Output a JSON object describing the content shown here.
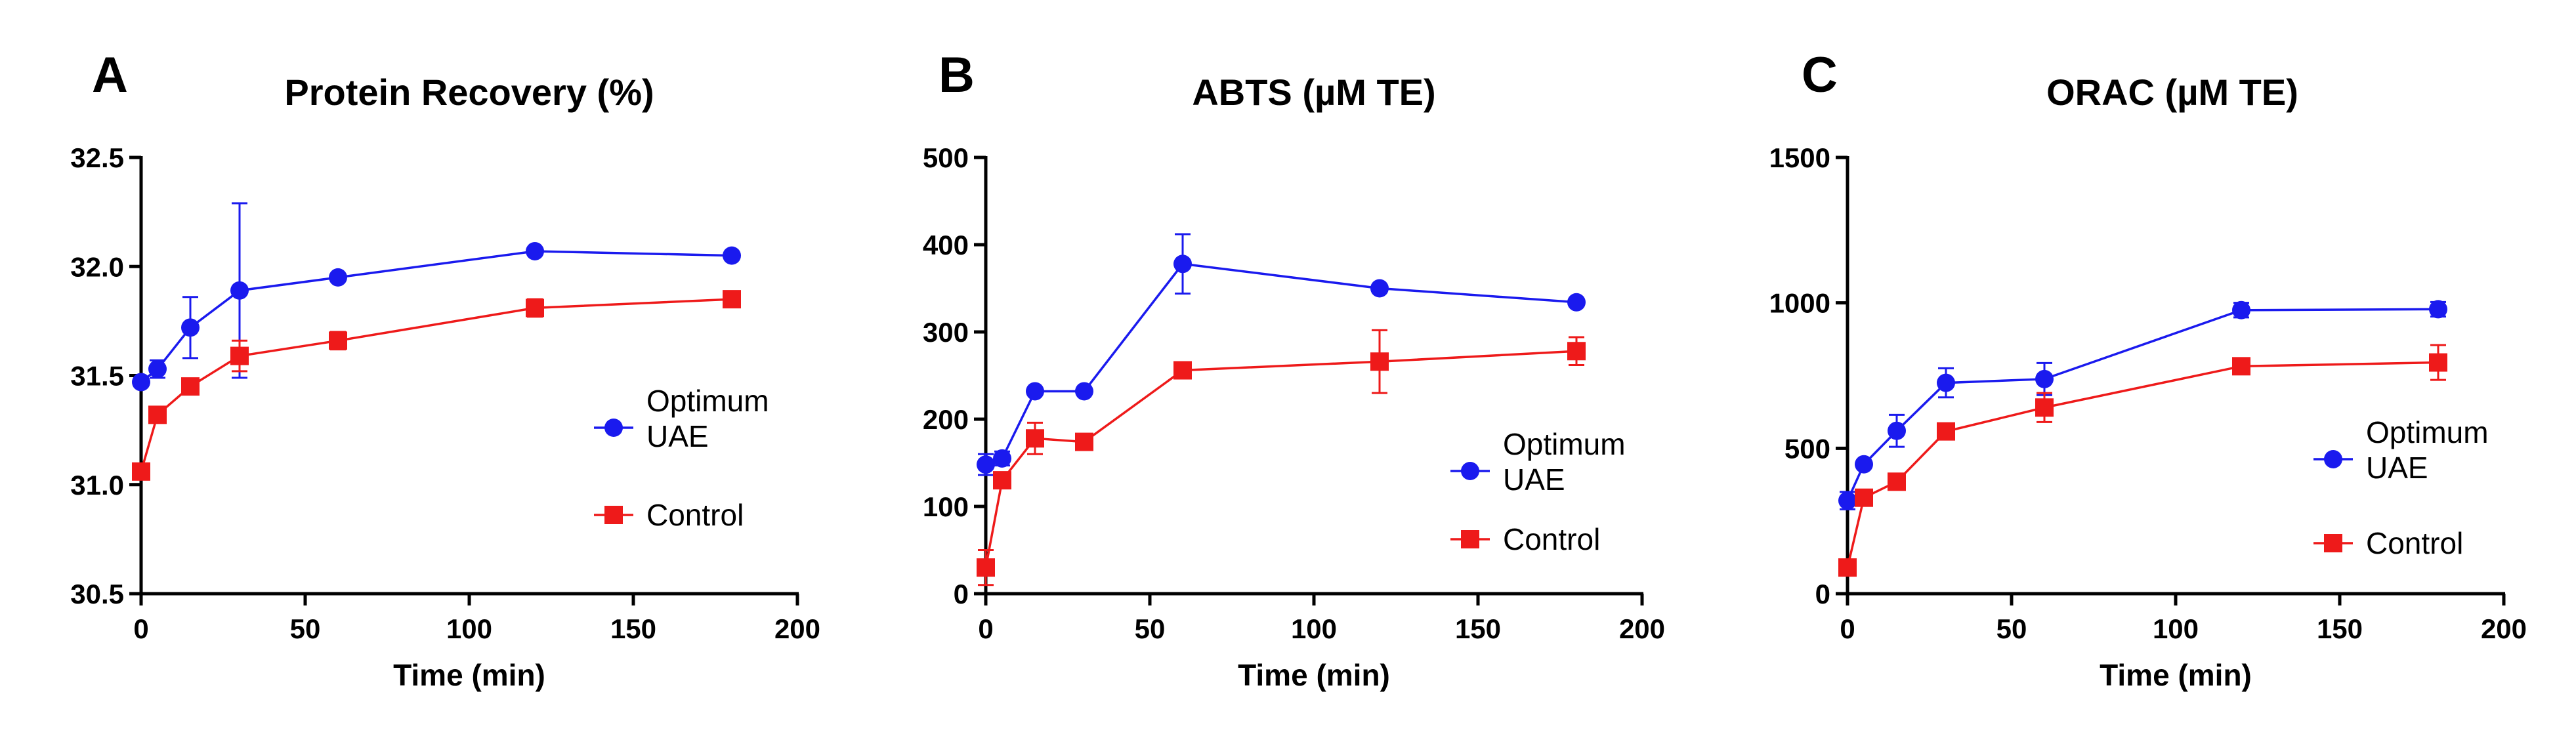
{
  "chart_data": [
    {
      "type": "line",
      "panel": "A",
      "title": "Protein Recovery (%)",
      "xlabel": "Time (min)",
      "ylabel": "",
      "xlim": [
        0,
        200
      ],
      "ylim": [
        30.5,
        32.5
      ],
      "xticks": [
        0,
        50,
        100,
        150,
        200
      ],
      "xtick_labels": [
        "0",
        "50",
        "100",
        "150",
        "200"
      ],
      "yticks": [
        30.5,
        31.0,
        31.5,
        32.0,
        32.5
      ],
      "ytick_labels": [
        "30.5",
        "31.0",
        "31.5",
        "32.0",
        "32.5"
      ],
      "x": [
        0,
        5,
        15,
        30,
        60,
        120,
        180
      ],
      "series": [
        {
          "name": "Optimum UAE",
          "legend_lines": [
            "Optimum",
            "UAE"
          ],
          "color": "#1a1aee",
          "marker": "circle",
          "values": [
            31.47,
            31.53,
            31.72,
            31.89,
            31.95,
            32.07,
            32.05
          ],
          "errors": [
            0.0,
            0.04,
            0.14,
            0.4,
            0.0,
            0.0,
            0.0
          ]
        },
        {
          "name": "Control",
          "legend_lines": [
            "Control"
          ],
          "color": "#ee1a1a",
          "marker": "square",
          "values": [
            31.06,
            31.32,
            31.45,
            31.59,
            31.66,
            31.81,
            31.85
          ],
          "errors": [
            0.0,
            0.0,
            0.0,
            0.07,
            0.04,
            0.04,
            0.0
          ]
        }
      ]
    },
    {
      "type": "line",
      "panel": "B",
      "title": "ABTS (µM TE)",
      "xlabel": "Time (min)",
      "ylabel": "",
      "xlim": [
        0,
        200
      ],
      "ylim": [
        0,
        500
      ],
      "xticks": [
        0,
        50,
        100,
        150,
        200
      ],
      "xtick_labels": [
        "0",
        "50",
        "100",
        "150",
        "200"
      ],
      "yticks": [
        0,
        100,
        200,
        300,
        400,
        500
      ],
      "ytick_labels": [
        "0",
        "100",
        "200",
        "300",
        "400",
        "500"
      ],
      "x": [
        0,
        5,
        15,
        30,
        60,
        120,
        180
      ],
      "series": [
        {
          "name": "Optimum UAE",
          "legend_lines": [
            "Optimum",
            "UAE"
          ],
          "color": "#1a1aee",
          "marker": "circle",
          "values": [
            148,
            155,
            232,
            232,
            378,
            350,
            334
          ],
          "errors": [
            12,
            8,
            0,
            0,
            34,
            0,
            0
          ]
        },
        {
          "name": "Control",
          "legend_lines": [
            "Control"
          ],
          "color": "#ee1a1a",
          "marker": "square",
          "values": [
            30,
            130,
            178,
            174,
            256,
            266,
            278
          ],
          "errors": [
            20,
            8,
            18,
            0,
            0,
            36,
            16
          ]
        }
      ]
    },
    {
      "type": "line",
      "panel": "C",
      "title": "ORAC (µM TE)",
      "xlabel": "Time (min)",
      "ylabel": "",
      "xlim": [
        0,
        200
      ],
      "ylim": [
        0,
        1500
      ],
      "xticks": [
        0,
        50,
        100,
        150,
        200
      ],
      "xtick_labels": [
        "0",
        "50",
        "100",
        "150",
        "200"
      ],
      "yticks": [
        0,
        500,
        1000,
        1500
      ],
      "ytick_labels": [
        "0",
        "500",
        "1000",
        "1500"
      ],
      "x": [
        0,
        5,
        15,
        30,
        60,
        120,
        180
      ],
      "series": [
        {
          "name": "Optimum UAE",
          "legend_lines": [
            "Optimum",
            "UAE"
          ],
          "color": "#1a1aee",
          "marker": "circle",
          "values": [
            320,
            445,
            560,
            725,
            738,
            975,
            978
          ],
          "errors": [
            30,
            0,
            55,
            50,
            55,
            25,
            25
          ]
        },
        {
          "name": "Control",
          "legend_lines": [
            "Control"
          ],
          "color": "#ee1a1a",
          "marker": "square",
          "values": [
            90,
            330,
            385,
            558,
            640,
            782,
            795
          ],
          "errors": [
            0,
            0,
            0,
            0,
            50,
            0,
            60
          ]
        }
      ]
    }
  ]
}
